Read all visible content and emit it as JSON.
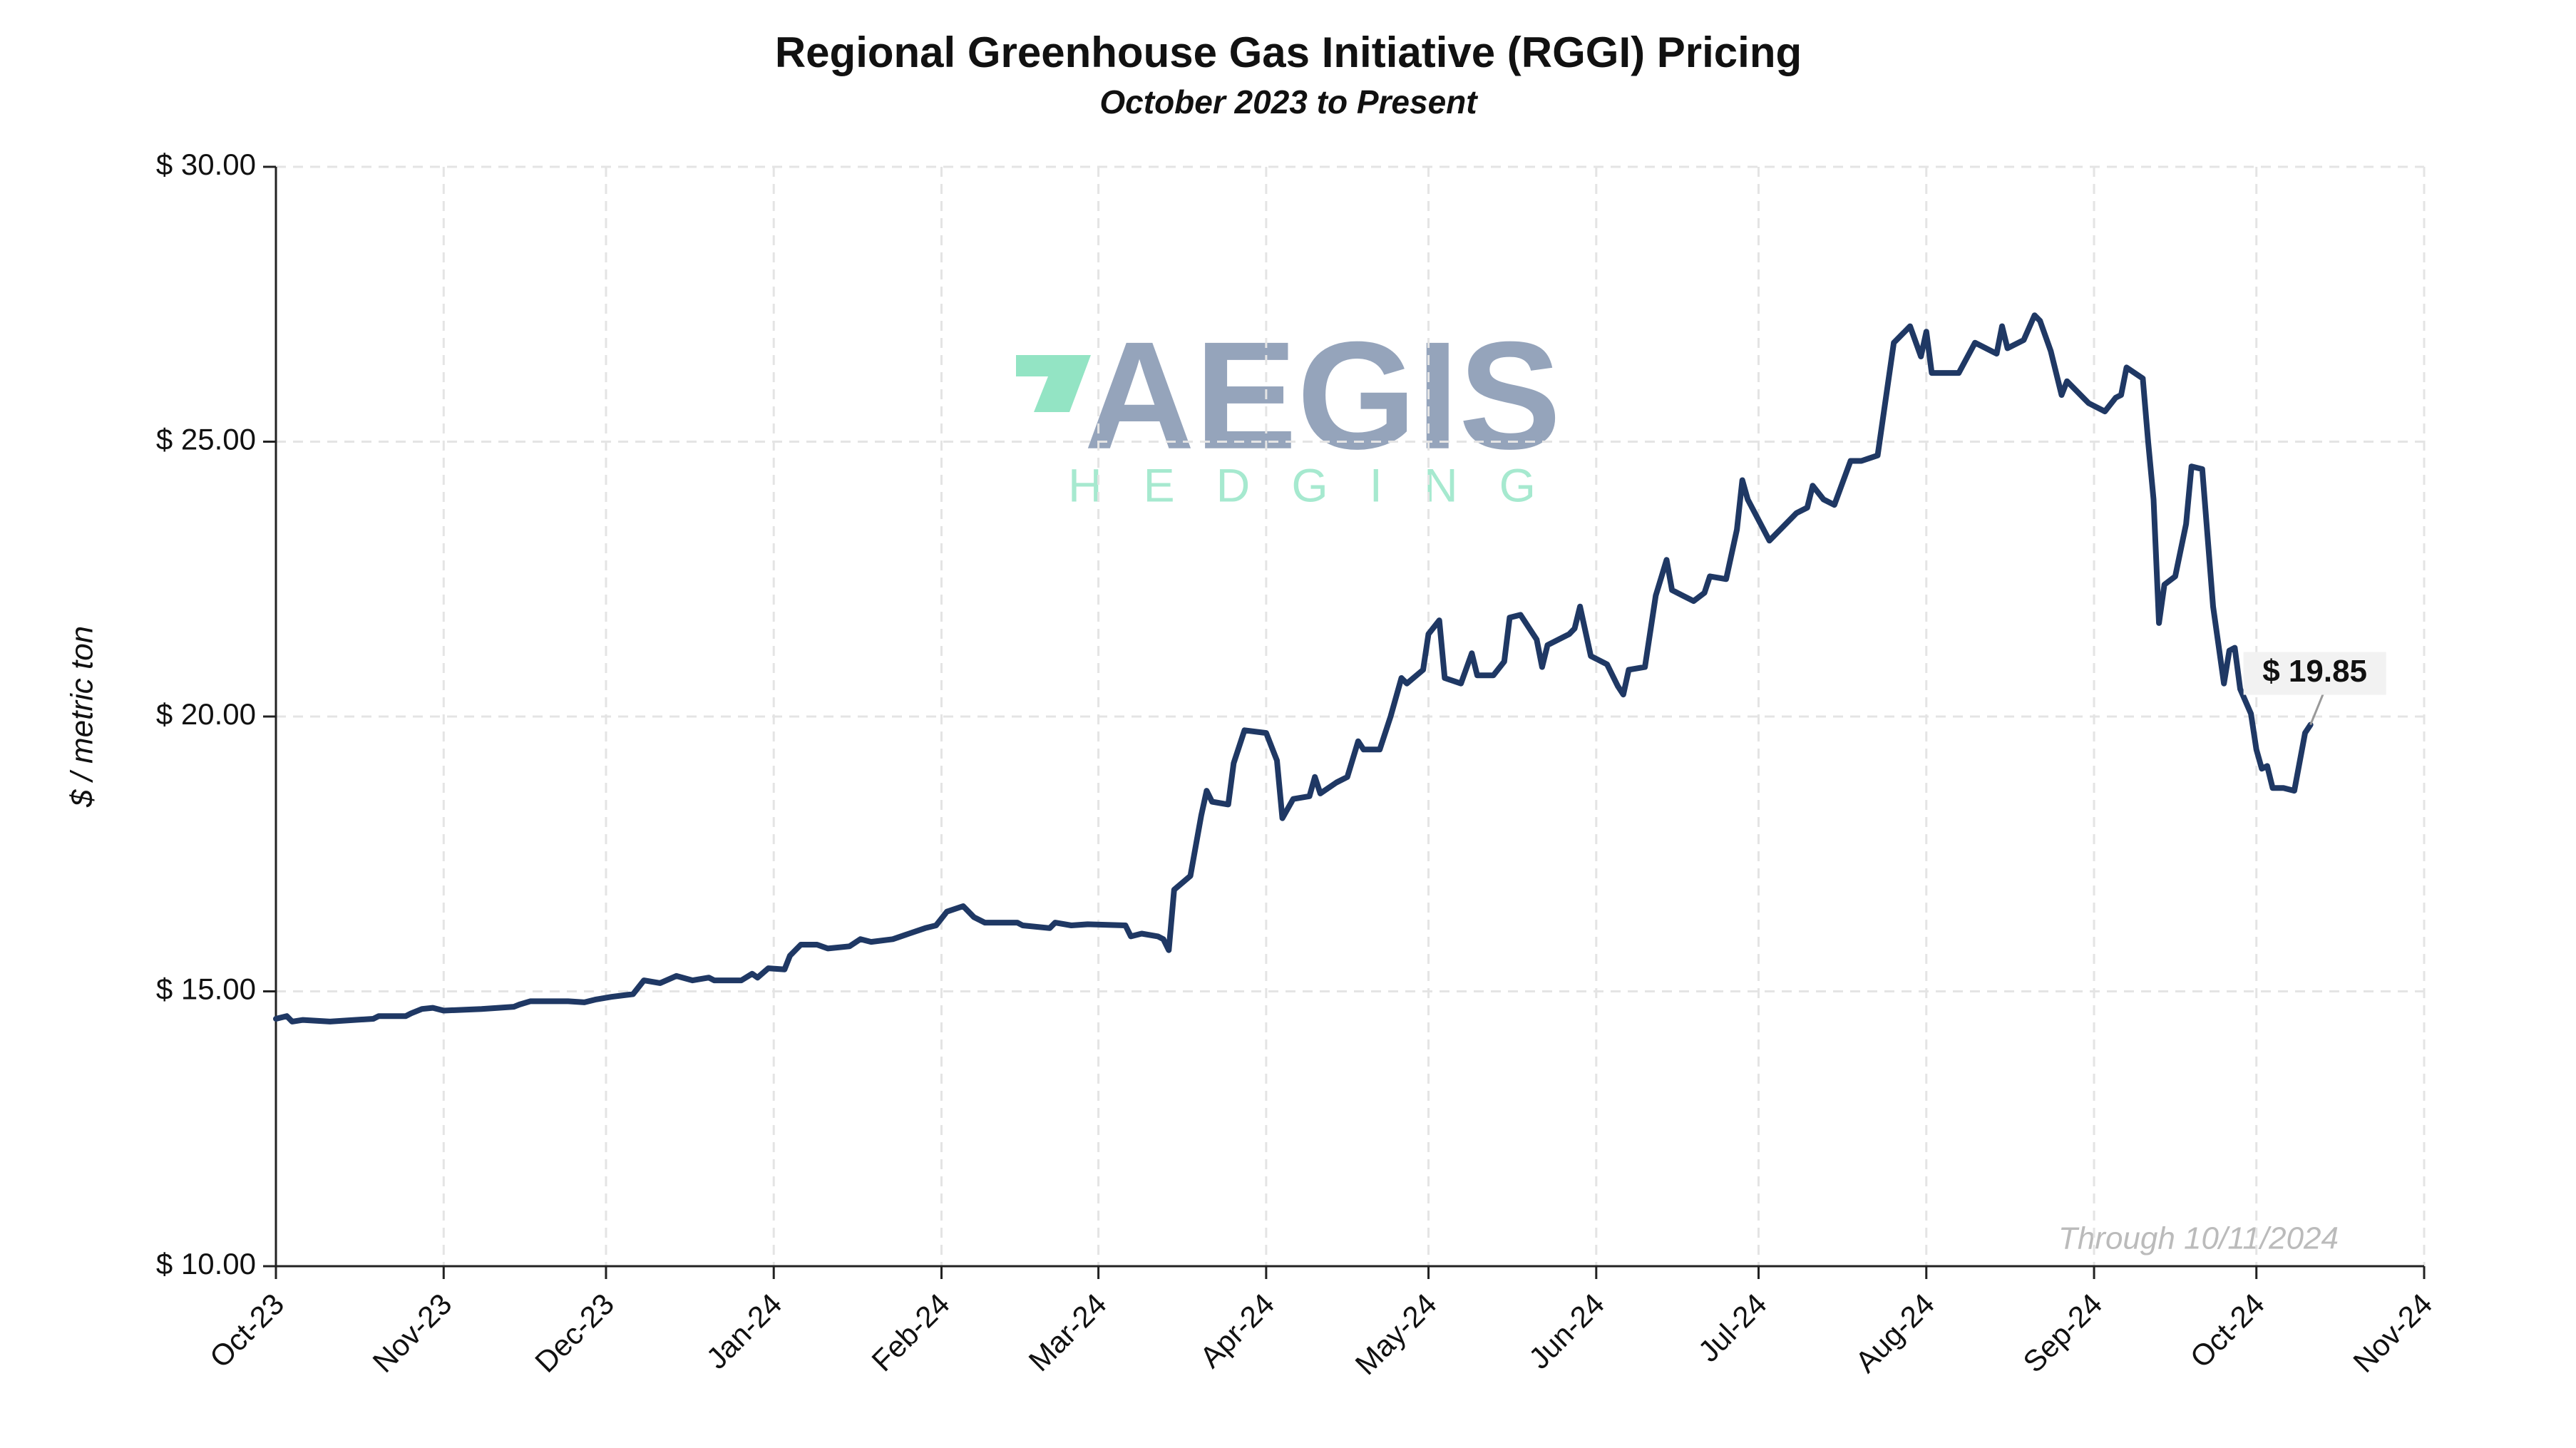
{
  "chart_data": {
    "type": "line",
    "title": "Regional Greenhouse Gas Initiative (RGGI) Pricing",
    "subtitle": "October 2023 to Present",
    "y_label": "$ / metric ton",
    "note": "Through 10/11/2024",
    "annotation": "$ 19.85",
    "watermark": {
      "name": "AEGIS",
      "tagline": "HEDGING"
    },
    "color": "#1f3864",
    "grid": true,
    "xlim": [
      0,
      397
    ],
    "xticks": [
      {
        "value": 0,
        "label": "Oct-23"
      },
      {
        "value": 31,
        "label": "Nov-23"
      },
      {
        "value": 61,
        "label": "Dec-23"
      },
      {
        "value": 92,
        "label": "Jan-24"
      },
      {
        "value": 123,
        "label": "Feb-24"
      },
      {
        "value": 152,
        "label": "Mar-24"
      },
      {
        "value": 183,
        "label": "Apr-24"
      },
      {
        "value": 213,
        "label": "May-24"
      },
      {
        "value": 244,
        "label": "Jun-24"
      },
      {
        "value": 274,
        "label": "Jul-24"
      },
      {
        "value": 305,
        "label": "Aug-24"
      },
      {
        "value": 336,
        "label": "Sep-24"
      },
      {
        "value": 366,
        "label": "Oct-24"
      },
      {
        "value": 397,
        "label": "Nov-24"
      }
    ],
    "ylim": [
      10,
      30
    ],
    "yticks": [
      {
        "value": 10,
        "label": "$ 10.00"
      },
      {
        "value": 15,
        "label": "$ 15.00"
      },
      {
        "value": 20,
        "label": "$ 20.00"
      },
      {
        "value": 25,
        "label": "$ 25.00"
      },
      {
        "value": 30,
        "label": "$ 30.00"
      }
    ],
    "x": [
      0,
      2,
      3,
      5,
      10,
      13,
      18,
      19,
      24,
      25,
      27,
      29,
      31,
      38,
      44,
      45,
      47,
      54,
      57,
      59,
      62,
      66,
      68,
      71,
      74,
      77,
      80,
      81,
      86,
      88,
      89,
      91,
      94,
      95,
      97,
      100,
      102,
      106,
      108,
      110,
      114,
      117,
      120,
      122,
      124,
      127,
      129,
      131,
      134,
      137,
      138,
      143,
      144,
      147,
      150,
      157,
      158,
      160,
      163,
      164,
      165,
      166,
      169,
      171,
      172,
      173,
      176,
      177,
      179,
      183,
      185,
      186,
      188,
      191,
      192,
      193,
      196,
      198,
      200,
      201,
      204,
      206,
      208,
      209,
      212,
      213,
      215,
      216,
      219,
      221,
      222,
      225,
      227,
      228,
      230,
      233,
      234,
      235,
      239,
      240,
      241,
      243,
      246,
      248,
      249,
      250,
      253,
      255,
      257,
      258,
      260,
      262,
      264,
      265,
      268,
      270,
      271,
      272,
      276,
      281,
      283,
      284,
      286,
      288,
      291,
      293,
      296,
      299,
      302,
      304,
      305,
      306,
      311,
      314,
      318,
      319,
      320,
      323,
      325,
      326,
      328,
      330,
      331,
      335,
      338,
      340,
      341,
      342,
      345,
      346,
      347,
      348,
      349,
      351,
      353,
      354,
      356,
      358,
      360,
      361,
      362,
      363,
      365,
      366,
      367,
      368,
      369,
      371,
      373,
      375,
      376
    ],
    "values": [
      14.5,
      14.55,
      14.45,
      14.48,
      14.45,
      14.47,
      14.5,
      14.55,
      14.55,
      14.6,
      14.68,
      14.7,
      14.65,
      14.68,
      14.72,
      14.76,
      14.82,
      14.82,
      14.8,
      14.85,
      14.9,
      14.95,
      15.2,
      15.15,
      15.28,
      15.2,
      15.25,
      15.2,
      15.2,
      15.32,
      15.25,
      15.42,
      15.4,
      15.65,
      15.85,
      15.85,
      15.78,
      15.82,
      15.95,
      15.9,
      15.95,
      16.05,
      16.15,
      16.2,
      16.45,
      16.55,
      16.35,
      16.25,
      16.25,
      16.25,
      16.2,
      16.15,
      16.25,
      16.2,
      16.22,
      16.2,
      16.0,
      16.05,
      16.0,
      15.95,
      15.75,
      16.85,
      17.1,
      18.2,
      18.65,
      18.45,
      18.4,
      19.15,
      19.75,
      19.7,
      19.2,
      18.15,
      18.5,
      18.55,
      18.9,
      18.6,
      18.8,
      18.9,
      19.55,
      19.4,
      19.4,
      20.0,
      20.7,
      20.6,
      20.85,
      21.5,
      21.75,
      20.7,
      20.6,
      21.15,
      20.75,
      20.75,
      21.0,
      21.8,
      21.85,
      21.4,
      20.9,
      21.3,
      21.5,
      21.6,
      22.0,
      21.1,
      20.95,
      20.55,
      20.4,
      20.85,
      20.9,
      22.2,
      22.85,
      22.3,
      22.2,
      22.1,
      22.25,
      22.55,
      22.5,
      23.4,
      24.3,
      23.95,
      23.2,
      23.7,
      23.8,
      24.2,
      23.95,
      23.85,
      24.65,
      24.65,
      24.75,
      26.8,
      27.1,
      26.55,
      27.0,
      26.25,
      26.25,
      26.8,
      26.6,
      27.1,
      26.7,
      26.85,
      27.3,
      27.2,
      26.65,
      25.85,
      26.1,
      25.7,
      25.55,
      25.8,
      25.85,
      26.35,
      26.15,
      25.0,
      23.95,
      21.7,
      22.4,
      22.55,
      23.5,
      24.55,
      24.5,
      22.0,
      20.6,
      21.2,
      21.25,
      20.5,
      20.05,
      19.4,
      19.05,
      19.1,
      18.7,
      18.7,
      18.65,
      19.7,
      19.85
    ]
  }
}
